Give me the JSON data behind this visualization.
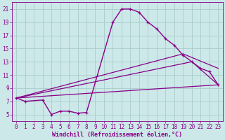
{
  "xlabel": "Windchill (Refroidissement éolien,°C)",
  "background_color": "#cce8e8",
  "grid_color": "#aacccc",
  "line_color": "#880088",
  "xlim": [
    -0.5,
    23.5
  ],
  "ylim": [
    4.0,
    22.0
  ],
  "xticks": [
    0,
    1,
    2,
    3,
    4,
    5,
    6,
    7,
    8,
    9,
    10,
    11,
    12,
    13,
    14,
    15,
    16,
    17,
    18,
    19,
    20,
    21,
    22,
    23
  ],
  "yticks": [
    5,
    7,
    9,
    11,
    13,
    15,
    17,
    19,
    21
  ],
  "series1_x": [
    0,
    1,
    3,
    4,
    5,
    6,
    7,
    8,
    11,
    12,
    13,
    14,
    15,
    16,
    17,
    18,
    19,
    20,
    21,
    22,
    23
  ],
  "series1_y": [
    7.5,
    7.0,
    7.2,
    5.0,
    5.5,
    5.5,
    5.2,
    5.3,
    19.0,
    21.0,
    21.0,
    20.5,
    19.0,
    18.0,
    16.5,
    15.5,
    14.0,
    13.0,
    12.0,
    11.5,
    9.5
  ],
  "series2_x": [
    0,
    23
  ],
  "series2_y": [
    7.5,
    9.5
  ],
  "series3_x": [
    0,
    20,
    23
  ],
  "series3_y": [
    7.5,
    13.0,
    9.5
  ],
  "series4_x": [
    0,
    19,
    23
  ],
  "series4_y": [
    7.5,
    14.2,
    12.0
  ],
  "tick_fontsize": 5.5,
  "xlabel_fontsize": 6.0
}
